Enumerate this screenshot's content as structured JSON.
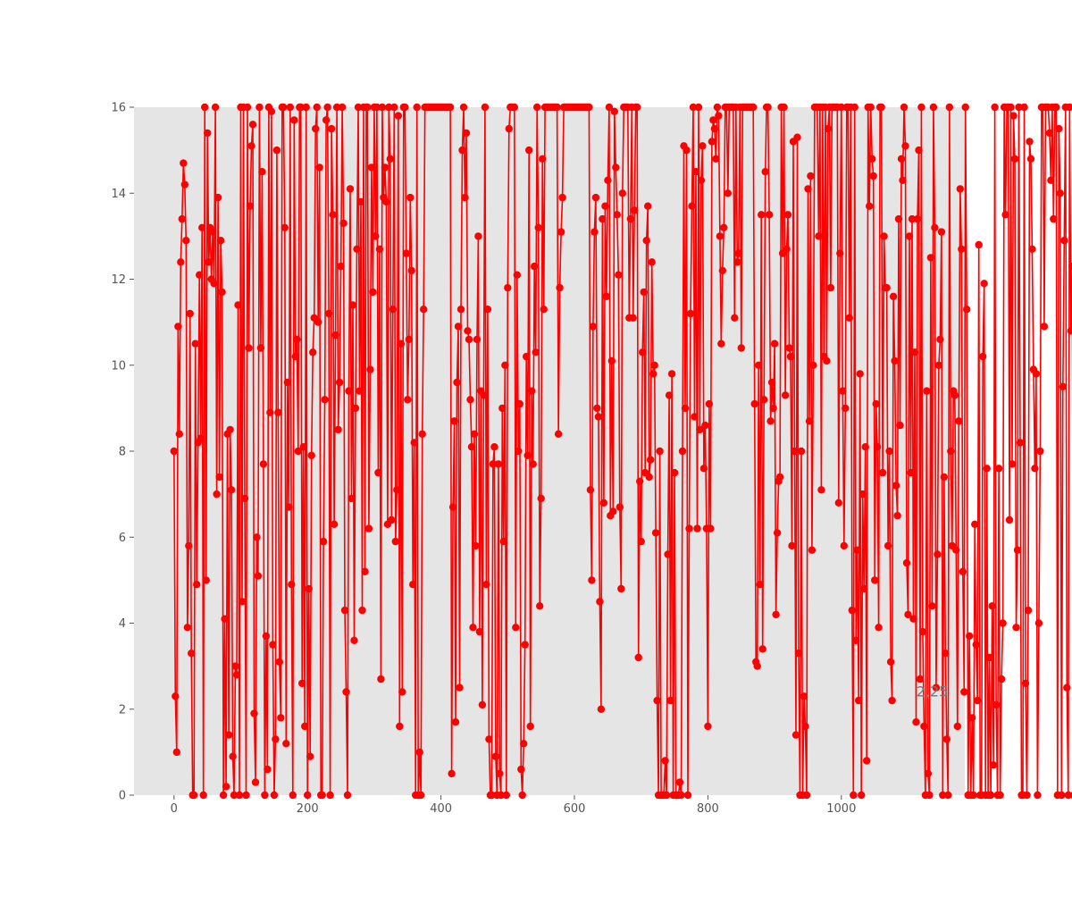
{
  "chart_data": {
    "type": "line",
    "title": "",
    "xlabel": "",
    "ylabel": "",
    "xlim": [
      -60,
      1185
    ],
    "ylim": [
      0,
      16
    ],
    "grid": false,
    "colors": {
      "series": "#ff0000",
      "plot_bg": "#e5e5e5",
      "text": "#555555"
    },
    "x_ticks": [
      0,
      200,
      400,
      600,
      800,
      1000
    ],
    "x_tick_labels": [
      "0",
      "200",
      "400",
      "600",
      "800",
      "1000"
    ],
    "y_ticks": [
      0,
      2,
      4,
      6,
      8,
      10,
      12,
      14,
      16
    ],
    "y_tick_labels": [
      "0",
      "2",
      "4",
      "6",
      "8",
      "10",
      "12",
      "14",
      "16"
    ],
    "annotation": {
      "text": "2.25",
      "x": 1135,
      "y": 2.25
    },
    "series": [
      {
        "marker": "circle",
        "x_start": 0,
        "x_step": 2,
        "values": [
          8.0,
          2.3,
          1.0,
          10.9,
          8.4,
          12.4,
          13.4,
          14.7,
          14.2,
          12.9,
          3.9,
          5.8,
          11.2,
          3.3,
          0.0,
          0.0,
          10.5,
          4.9,
          8.2,
          12.1,
          8.3,
          13.2,
          0.0,
          16.0,
          5.0,
          15.4,
          12.4,
          13.2,
          12.0,
          13.1,
          11.9,
          16.0,
          7.0,
          13.9,
          7.4,
          12.9,
          11.7,
          0.0,
          4.1,
          0.2,
          8.4,
          1.4,
          8.5,
          7.1,
          0.9,
          0.0,
          3.0,
          2.8,
          11.4,
          0.0,
          16.0,
          4.5,
          16.0,
          6.9,
          0.0,
          16.0,
          10.4,
          13.7,
          15.1,
          15.6,
          1.9,
          0.3,
          6.0,
          5.1,
          16.0,
          10.4,
          14.5,
          7.7,
          0.0,
          3.7,
          0.6,
          16.0,
          8.9,
          15.9,
          3.5,
          0.0,
          1.3,
          15.0,
          8.9,
          3.1,
          1.8,
          16.0,
          16.0,
          13.2,
          1.2,
          9.6,
          6.7,
          16.0,
          4.9,
          0.0,
          15.7,
          10.2,
          10.6,
          8.0,
          16.0,
          16.0,
          2.6,
          8.1,
          1.6,
          16.0,
          0.0,
          4.8,
          0.9,
          7.9,
          10.3,
          11.1,
          15.5,
          16.0,
          11.0,
          14.6,
          0.0,
          0.0,
          5.9,
          9.2,
          15.7,
          16.0,
          11.2,
          0.0,
          15.5,
          13.5,
          6.3,
          10.7,
          16.0,
          8.5,
          9.6,
          12.3,
          16.0,
          13.3,
          4.3,
          2.4,
          0.0,
          9.4,
          14.1,
          6.9,
          11.4,
          3.6,
          9.0,
          12.7,
          16.0,
          9.4,
          13.8,
          4.3,
          16.0,
          5.2,
          16.0,
          16.0,
          6.2,
          9.9,
          14.6,
          11.7,
          16.0,
          13.0,
          16.0,
          7.5,
          12.7,
          2.7,
          16.0,
          13.9,
          14.6,
          13.8,
          6.3,
          16.0,
          14.8,
          6.4,
          11.3,
          16.0,
          5.9,
          7.1,
          15.8,
          1.6,
          10.5,
          2.4,
          16.0,
          16.0,
          12.6,
          9.2,
          10.6,
          13.9,
          12.2,
          4.9,
          8.2,
          0.0,
          16.0,
          0.0,
          1.0,
          0.0,
          8.4,
          11.3,
          16.0,
          16.0,
          16.0,
          16.0,
          16.0,
          16.0,
          16.0,
          16.0,
          16.0,
          16.0,
          16.0,
          16.0,
          16.0,
          16.0,
          16.0,
          16.0,
          16.0,
          16.0,
          16.0,
          16.0,
          0.5,
          6.7,
          8.7,
          1.7,
          9.6,
          10.9,
          2.5,
          11.3,
          15.0,
          16.0,
          13.9,
          15.4,
          10.8,
          10.6,
          9.2,
          8.1,
          3.9,
          8.4,
          5.8,
          10.6,
          13.0,
          3.8,
          9.4,
          2.1,
          9.3,
          16.0,
          4.9,
          11.3,
          1.3,
          0.0,
          0.0,
          7.7,
          8.1,
          0.9,
          0.0,
          7.7,
          0.5,
          0.0,
          9.0,
          5.9,
          10.0,
          0.0,
          11.8,
          15.5,
          16.0,
          16.0,
          16.0,
          16.0,
          3.9,
          12.1,
          8.0,
          9.1,
          0.6,
          0.0,
          1.2,
          3.5,
          10.2,
          7.9,
          15.0,
          1.6,
          9.4,
          7.7,
          12.3,
          10.3,
          16.0,
          13.2,
          4.4,
          6.9,
          14.8,
          11.3,
          16.0,
          16.0,
          16.0,
          16.0,
          16.0,
          16.0,
          16.0,
          16.0,
          16.0,
          16.0,
          8.4,
          11.8,
          13.1,
          13.9,
          16.0,
          16.0,
          16.0,
          16.0,
          16.0,
          16.0,
          16.0,
          16.0,
          16.0,
          16.0,
          16.0,
          16.0,
          16.0,
          16.0,
          16.0,
          16.0,
          16.0,
          16.0,
          16.0,
          16.0,
          7.1,
          5.0,
          10.9,
          13.1,
          13.9,
          9.0,
          8.8,
          4.5,
          2.0,
          13.4,
          6.8,
          13.7,
          11.6,
          14.3,
          16.0,
          6.5,
          10.1,
          6.6,
          15.9,
          14.6,
          13.5,
          12.1,
          6.7,
          4.8,
          14.0,
          16.0,
          16.0,
          16.0,
          16.0,
          11.1,
          13.4,
          16.0,
          11.1,
          13.6,
          16.0,
          16.0,
          3.2,
          7.3,
          5.9,
          10.3,
          11.7,
          7.5,
          12.9,
          13.7,
          7.4,
          7.8,
          12.4,
          9.8,
          10.0,
          6.1,
          2.2,
          0.0,
          8.0,
          0.0,
          0.0,
          0.0,
          0.8,
          0.0,
          5.6,
          9.3,
          2.2,
          9.8,
          0.0,
          7.5,
          0.0,
          0.0,
          0.0,
          0.3,
          0.0,
          8.0,
          15.1,
          9.0,
          15.0,
          0.0,
          6.2,
          11.2,
          13.7,
          16.0,
          8.8,
          14.5,
          6.2,
          16.0,
          8.5,
          14.3,
          15.1,
          7.6,
          8.6,
          6.2,
          1.6,
          9.1,
          6.2,
          15.2,
          15.7,
          15.5,
          14.8,
          16.0,
          15.8,
          13.0,
          10.5,
          12.2,
          13.2,
          16.0,
          16.0,
          14.0,
          16.0,
          16.0,
          16.0,
          16.0,
          11.1,
          16.0,
          12.4,
          12.6,
          16.0,
          10.4,
          16.0,
          16.0,
          16.0,
          16.0,
          16.0,
          16.0,
          16.0,
          16.0,
          16.0,
          9.1,
          3.1,
          3.0,
          10.0,
          4.9,
          13.5,
          3.4,
          9.2,
          14.5,
          16.0,
          16.0,
          13.5,
          8.7,
          9.6,
          9.0,
          10.5,
          4.2,
          6.1,
          7.3,
          7.4,
          16.0,
          12.6,
          16.0,
          9.3,
          12.7,
          13.5,
          10.4,
          10.2,
          5.8,
          15.2,
          8.0,
          1.4,
          15.3,
          3.3,
          0.0,
          8.0,
          0.0,
          2.3,
          1.6,
          0.0,
          14.1,
          8.7,
          14.4,
          5.7,
          10.0,
          16.0,
          16.0,
          16.0,
          13.0,
          16.0,
          7.1,
          16.0,
          10.2,
          16.0,
          10.1,
          15.5,
          16.0,
          11.8,
          16.0,
          16.0,
          16.0,
          16.0,
          16.0,
          6.8,
          12.6,
          16.0,
          9.4,
          5.8,
          9.0,
          16.0,
          16.0,
          11.1,
          16.0,
          4.3,
          0.0,
          16.0,
          3.6,
          5.7,
          2.2,
          9.8,
          0.0,
          7.0,
          4.8,
          8.1,
          0.8,
          16.0,
          13.7,
          16.0,
          14.8,
          14.4,
          5.0,
          9.1,
          8.1,
          3.9,
          16.0,
          16.0,
          7.5,
          13.0,
          11.8,
          11.8,
          5.8,
          8.0,
          3.1,
          2.2,
          11.6,
          10.1,
          7.2,
          6.5,
          13.4,
          8.6,
          14.8,
          14.3,
          16.0,
          15.1,
          5.4,
          4.2,
          13.0,
          7.5,
          13.4,
          4.1,
          10.3,
          1.7,
          13.4,
          15.0,
          2.7,
          16.0,
          3.8,
          1.6,
          0.0,
          9.4,
          0.5,
          0.0,
          12.5,
          4.4,
          16.0,
          13.2,
          2.5,
          5.6,
          10.0,
          10.6,
          13.1,
          0.0,
          7.4,
          3.3,
          1.3,
          0.0,
          16.0,
          8.0,
          5.8,
          9.4,
          9.3,
          5.7,
          1.6,
          8.7,
          14.1,
          12.7,
          5.2,
          2.4,
          16.0,
          11.3,
          0.0,
          3.7,
          0.0,
          1.8,
          0.0,
          6.3,
          3.5,
          2.2,
          12.8,
          0.0,
          0.0,
          10.2,
          11.9,
          0.0,
          7.6,
          0.0,
          3.2,
          0.0,
          4.4,
          0.7,
          16.0,
          2.1,
          0.0,
          7.6,
          0.0,
          2.7,
          4.0,
          16.0,
          13.5,
          16.0,
          16.0,
          6.4,
          16.0,
          7.7,
          15.8,
          14.8,
          3.9,
          5.7,
          16.0,
          8.2,
          0.0,
          0.0,
          16.0,
          2.6,
          0.0,
          4.3,
          15.2,
          14.8,
          12.7,
          9.9,
          7.6,
          9.8,
          0.0,
          4.0,
          8.0,
          16.0,
          16.0,
          10.9,
          16.0,
          16.0,
          16.0,
          15.4,
          14.3,
          16.0,
          13.4,
          16.0,
          16.0,
          0.0,
          15.5,
          14.0,
          0.0,
          9.5,
          12.9,
          16.0,
          2.5,
          0.0,
          16.0,
          10.8,
          12.3,
          0.0,
          16.0,
          13.4,
          8.0,
          16.0,
          5.5,
          1.9,
          14.1,
          10.3,
          16.0,
          11.8,
          14.7,
          0.0,
          2.8,
          8.4,
          11.3,
          5.8,
          0.0,
          11.4,
          9.0,
          16.0,
          4.8,
          7.1,
          13.7,
          16.0,
          14.8,
          9.0,
          0.0,
          4.8,
          4.6,
          0.9,
          2.9,
          11.5,
          10.3,
          0.3,
          3.3,
          4.7,
          8.0,
          0.9,
          16.0,
          12.9,
          16.0,
          13.8,
          15.3,
          11.6,
          6.7,
          9.7,
          16.0,
          6.9,
          6.2,
          7.2,
          8.1,
          9.5,
          3.6,
          16.0,
          9.0,
          12.1,
          11.6,
          16.0,
          16.0,
          16.0,
          9.9,
          5.2,
          11.4,
          6.0,
          16.0,
          13.2,
          8.8,
          12.5,
          0.7,
          14.7,
          15.4,
          8.2,
          11.0,
          10.5,
          16.0,
          7.4,
          16.0,
          9.0,
          16.0,
          12.3,
          3.9,
          15.7,
          8.6,
          16.0,
          15.5,
          15.8,
          16.0,
          16.0,
          14.6,
          16.0,
          16.0,
          16.0,
          16.0,
          16.0,
          16.0,
          16.0,
          16.0,
          16.0,
          16.0,
          16.0,
          16.0,
          16.0,
          16.0,
          16.0,
          16.0,
          16.0,
          16.0,
          16.0,
          16.0,
          16.0,
          16.0,
          16.0,
          16.0,
          16.0,
          16.0,
          6.7,
          9.3,
          0.0,
          2.5,
          0.0,
          12.4,
          0.0,
          14.2,
          12.6,
          13.6,
          14.4,
          2.7,
          12.8,
          11.0,
          8.9,
          2.1,
          10.1,
          5.9,
          1.4,
          7.5,
          13.3,
          8.7,
          11.4,
          13.4,
          15.3,
          6.1,
          3.7,
          11.8,
          1.1,
          11.2,
          5.4,
          2.2,
          12.5,
          10.9,
          3.5,
          7.2,
          12.8,
          16.0,
          0.0,
          0.0,
          6.2,
          12.1,
          13.8,
          16.0,
          7.6,
          13.9,
          10.0,
          7.1,
          1.2,
          6.6,
          8.6,
          16.0,
          11.8,
          7.3,
          10.6,
          5.6,
          16.0,
          6.4,
          1.8,
          3.4,
          1.6,
          15.5,
          15.4,
          14.7,
          12.1,
          16.0,
          1.1,
          16.0,
          14.2,
          11.3,
          6.8,
          1.5,
          14.0,
          8.1,
          15.3,
          12.6,
          10.7,
          4.6,
          13.3,
          0.4,
          16.0,
          16.0,
          14.3,
          9.1,
          10.3,
          15.5,
          9.2,
          3.8,
          9.8,
          14.4,
          6.0,
          16.0,
          8.2,
          0.4,
          3.0,
          2.9,
          5.5,
          16.0,
          16.0,
          16.0,
          16.0,
          16.0,
          16.0,
          16.0,
          16.0,
          16.0,
          16.0,
          16.0,
          16.0,
          16.0,
          16.0,
          16.0,
          16.0,
          16.0,
          16.0,
          16.0,
          16.0,
          16.0,
          16.0,
          16.0,
          16.0,
          16.0,
          16.0,
          16.0,
          16.0,
          16.0,
          16.0,
          16.0,
          16.0,
          15.0,
          13.2,
          16.0,
          15.4,
          12.9,
          16.0,
          15.0,
          15.5,
          9.0,
          12.5,
          14.9,
          13.9,
          9.0,
          16.0,
          16.0,
          4.5,
          16.0,
          9.1,
          3.2,
          2.3,
          3.8,
          10.1,
          16.0,
          11.8,
          13.0,
          16.0,
          4.1,
          1.1,
          7.5,
          4.8,
          14.3,
          10.4,
          12.7,
          8.3,
          16.0,
          7.0,
          10.9,
          15.6,
          12.2,
          6.0,
          16.0,
          11.9,
          14.3,
          12.6,
          16.0,
          9.6,
          10.4,
          15.0,
          14.9,
          6.0,
          13.9,
          10.2,
          12.3,
          0.0,
          0.0,
          6.5,
          6.1,
          9.3,
          11.2,
          12.3,
          2.8,
          15.8,
          15.6,
          13.6,
          0.0,
          14.5,
          15.4,
          16.0,
          9.2,
          15.5,
          14.6,
          10.3,
          16.0,
          0.0,
          0.4,
          6.4,
          8.5,
          0.5,
          6.2,
          5.0,
          1.1,
          15.3,
          16.0,
          11.9,
          5.3,
          13.1,
          16.0,
          16.0,
          4.6,
          4.4,
          8.3,
          10.5,
          10.1,
          0.0,
          7.9,
          8.1,
          0.0,
          0.0,
          6.0,
          12.5,
          16.0,
          5.2,
          0.0,
          10.7,
          16.0,
          8.5,
          4.2,
          10.3,
          12.6,
          3.6,
          14.6,
          0.0,
          0.0,
          9.1,
          8.8,
          0.0,
          16.0,
          1.7,
          8.4,
          13.3,
          6.6,
          5.7,
          4.6,
          0.0,
          4.9,
          6.4,
          9.3,
          1.7,
          0.0,
          5.3,
          0.0,
          0.0,
          10.5,
          0.0,
          12.1,
          6.1,
          0.0,
          0.0,
          1.2,
          5.1,
          9.6,
          8.4,
          0.8,
          0.0,
          0.0,
          11.5,
          9.6,
          12.8,
          13.7,
          4.7,
          3.2,
          7.1,
          0.0,
          6.8,
          0.7,
          0.0,
          4.9,
          8.3,
          2.25
        ]
      }
    ]
  }
}
